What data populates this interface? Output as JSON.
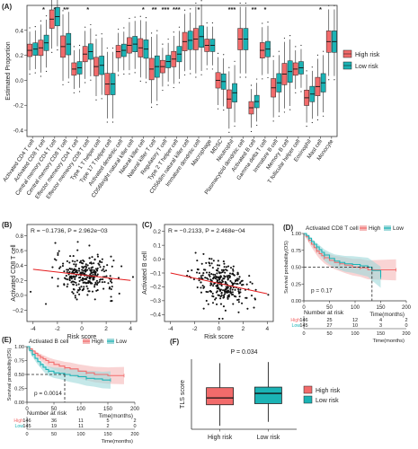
{
  "colors": {
    "high": "#F26B6B",
    "low": "#1BB3B5",
    "red_line": "#E41A1C",
    "high_shade": "#F5B7B7",
    "low_shade": "#9ED9DA"
  },
  "chart_data": [
    {
      "panel": "(A)",
      "type": "box",
      "ylabel": "Estimated Proportion",
      "ylim": [
        -0.45,
        0.6
      ],
      "yticks": [
        -0.4,
        -0.2,
        0.0,
        0.2,
        0.4
      ],
      "ytick_labels": [
        "-0.4",
        "-0.2",
        "0.0",
        "0.2",
        "0.4"
      ],
      "legend": [
        "High risk",
        "Low risk"
      ],
      "categories": [
        "Activated CD4 T cell",
        "Activated CD8 T cell",
        "Central memory CD4 T cell",
        "Central memory CD8 T cell",
        "Effector memeory CD4 T cell",
        "Effector memeory CD8 T cell",
        "Type 1 T helper cell",
        "Type 17 T helper cell",
        "Activated dendritic cell",
        "CD56bright natural killer cell",
        "Natural killer cell",
        "Natural killer T cell",
        "Regulatory T cell",
        "Type 2 T helper cell",
        "CD56dim natural killer cell",
        "Immature dendritic cell",
        "Macrophage",
        "MDSC",
        "Neutrophil",
        "Plasmacytoid dendritic cell",
        "Activated B cell",
        "Gamma delta T cell",
        "Immature B cell",
        "Memory B cell",
        "T follicular helper cell",
        "Eosinophil",
        "Mast cell",
        "Monocyte"
      ],
      "significance": [
        "",
        "*",
        "*",
        "**",
        "",
        "*",
        "",
        "",
        "",
        "",
        "*",
        "**",
        "***",
        "***",
        "",
        "*",
        "",
        "",
        "***",
        "",
        "**",
        "*",
        "",
        "",
        "",
        "",
        "*",
        ""
      ],
      "high_medians": [
        0.24,
        0.26,
        0.49,
        0.27,
        0.09,
        0.21,
        0.11,
        -0.03,
        0.23,
        0.28,
        0.26,
        0.09,
        0.11,
        0.17,
        0.31,
        0.33,
        0.28,
        0.0,
        -0.15,
        0.33,
        -0.22,
        0.24,
        -0.06,
        0.05,
        0.09,
        -0.14,
        -0.05,
        0.31
      ],
      "low_medians": [
        0.25,
        0.3,
        0.51,
        0.29,
        0.1,
        0.23,
        0.12,
        -0.03,
        0.24,
        0.29,
        0.25,
        0.11,
        0.15,
        0.21,
        0.32,
        0.35,
        0.28,
        -0.01,
        -0.1,
        0.33,
        -0.17,
        0.25,
        -0.02,
        0.07,
        0.1,
        -0.11,
        -0.02,
        0.31
      ]
    },
    {
      "panel": "(B)",
      "type": "scatter",
      "annotation": "R = −0.1736, P = 2.962e−03",
      "xlabel": "Risk score",
      "ylabel": "Activated CD8 T cell",
      "xlim": [
        -4.5,
        4.5
      ],
      "ylim": [
        -0.35,
        0.95
      ],
      "xticks": [
        -4,
        -2,
        0,
        2,
        4
      ],
      "yticks": [
        -0.2,
        0.0,
        0.2,
        0.4,
        0.6,
        0.8
      ],
      "ytick_labels": [
        "−0.2",
        "0.0",
        "0.2",
        "0.4",
        "0.6",
        "0.8"
      ],
      "fit": {
        "x": [
          -4,
          4
        ],
        "y": [
          0.35,
          0.2
        ]
      }
    },
    {
      "panel": "(C)",
      "type": "scatter",
      "annotation": "R = −0.2133, P = 2.468e−04",
      "xlabel": "Risk score",
      "ylabel": "Activated B cell",
      "xlim": [
        -4.5,
        4.5
      ],
      "ylim": [
        -0.45,
        0.25
      ],
      "xticks": [
        -4,
        -2,
        0,
        2,
        4
      ],
      "yticks": [
        -0.4,
        -0.3,
        -0.2,
        -0.1,
        0.0,
        0.1,
        0.2
      ],
      "ytick_labels": [
        "−0.4",
        "−0.3",
        "−0.2",
        "−0.1",
        "0.0",
        "0.1",
        "0.2"
      ],
      "fit": {
        "x": [
          -4,
          4
        ],
        "y": [
          -0.1,
          -0.25
        ]
      }
    },
    {
      "panel": "(D)",
      "type": "line",
      "title": "Activated CD8 T cell",
      "legend": [
        "High",
        "Low"
      ],
      "xlabel": "Time(months)",
      "ylabel": "Survival probability(OS)",
      "pvalue": "p = 0.17",
      "xlim": [
        0,
        200
      ],
      "ylim": [
        0,
        1
      ],
      "xticks": [
        0,
        50,
        100,
        150,
        200
      ],
      "yticks": [
        0,
        0.25,
        0.5,
        0.75,
        1
      ],
      "ytick_labels": [
        "0.00",
        "0.25",
        "0.50",
        "0.75",
        "1.00"
      ],
      "median_time": 133,
      "series": [
        {
          "name": "High",
          "x": [
            0,
            5,
            10,
            15,
            20,
            25,
            30,
            35,
            40,
            50,
            60,
            70,
            80,
            95,
            110,
            125,
            150,
            180
          ],
          "y": [
            1,
            0.95,
            0.9,
            0.84,
            0.79,
            0.74,
            0.7,
            0.67,
            0.64,
            0.6,
            0.57,
            0.55,
            0.53,
            0.5,
            0.49,
            0.46,
            0.46,
            0.46
          ]
        },
        {
          "name": "Low",
          "x": [
            0,
            5,
            10,
            15,
            20,
            25,
            30,
            35,
            40,
            50,
            60,
            70,
            80,
            95,
            110,
            125,
            133,
            150
          ],
          "y": [
            1,
            0.97,
            0.93,
            0.88,
            0.84,
            0.8,
            0.76,
            0.72,
            0.68,
            0.63,
            0.59,
            0.57,
            0.55,
            0.54,
            0.52,
            0.5,
            0.45,
            0.35
          ]
        }
      ],
      "risk_table": {
        "title": "Number at risk",
        "rows": [
          {
            "label": "High",
            "values": [
              "146",
              "25",
              "12",
              "4",
              "2"
            ]
          },
          {
            "label": "Low",
            "values": [
              "145",
              "27",
              "10",
              "3",
              "0"
            ]
          }
        ]
      }
    },
    {
      "panel": "(E)",
      "type": "line",
      "title": "Activated B cell",
      "legend": [
        "High",
        "Low"
      ],
      "xlabel": "Time(months)",
      "ylabel": "Survival probability(OS)",
      "pvalue": "p = 0.0014",
      "xlim": [
        0,
        200
      ],
      "ylim": [
        0,
        1
      ],
      "xticks": [
        0,
        50,
        100,
        150,
        200
      ],
      "yticks": [
        0,
        0.25,
        0.5,
        0.75,
        1
      ],
      "ytick_labels": [
        "0.00",
        "0.25",
        "0.50",
        "0.75",
        "1.00"
      ],
      "median_time": 70,
      "series": [
        {
          "name": "High",
          "x": [
            0,
            5,
            10,
            15,
            20,
            25,
            30,
            35,
            40,
            50,
            60,
            70,
            80,
            95,
            110,
            125,
            150,
            180
          ],
          "y": [
            1,
            0.96,
            0.92,
            0.88,
            0.84,
            0.81,
            0.78,
            0.75,
            0.72,
            0.68,
            0.65,
            0.62,
            0.6,
            0.56,
            0.53,
            0.5,
            0.48,
            0.48
          ]
        },
        {
          "name": "Low",
          "x": [
            0,
            5,
            10,
            15,
            20,
            25,
            30,
            35,
            40,
            50,
            60,
            70,
            80,
            95,
            110,
            125,
            140,
            155
          ],
          "y": [
            1,
            0.93,
            0.86,
            0.79,
            0.73,
            0.68,
            0.63,
            0.59,
            0.56,
            0.53,
            0.52,
            0.5,
            0.48,
            0.46,
            0.43,
            0.42,
            0.4,
            0.4
          ]
        }
      ],
      "risk_table": {
        "title": "Number at risk",
        "rows": [
          {
            "label": "High",
            "values": [
              "146",
              "36",
              "11",
              "5",
              "2"
            ]
          },
          {
            "label": "Low",
            "values": [
              "145",
              "19",
              "11",
              "2",
              "0"
            ]
          }
        ]
      }
    },
    {
      "panel": "(F)",
      "type": "box",
      "title": "P = 0.034",
      "ylabel": "TLS score",
      "categories": [
        "High risk",
        "Low risk"
      ],
      "legend": [
        "High risk",
        "Low risk"
      ],
      "boxes": [
        {
          "name": "High risk",
          "min": -0.42,
          "q1": -0.05,
          "median": 0.07,
          "q3": 0.25,
          "max": 0.68
        },
        {
          "name": "Low risk",
          "min": -0.35,
          "q1": -0.03,
          "median": 0.15,
          "q3": 0.26,
          "max": 0.7
        }
      ],
      "ylim": [
        -0.48,
        0.75
      ]
    }
  ]
}
